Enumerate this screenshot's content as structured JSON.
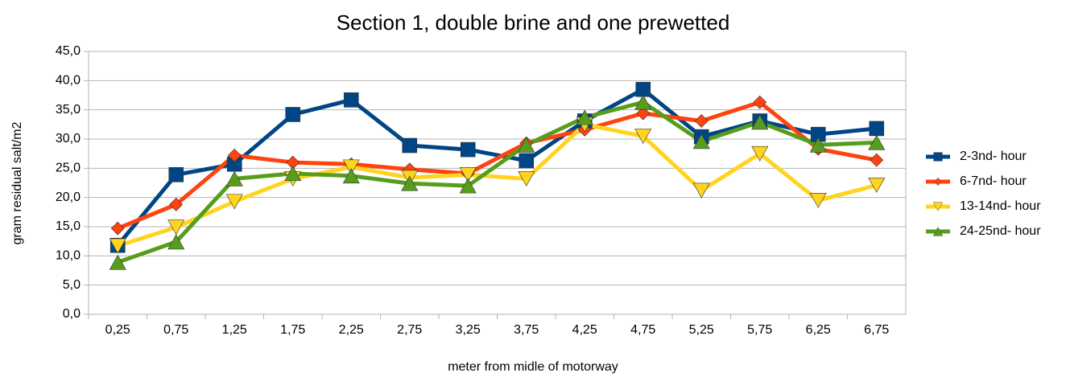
{
  "chart_data": {
    "type": "line",
    "title": "Section 1, double brine and one prewetted",
    "x_label": "meter from midle of motorway",
    "y_label": "gram residual salt/m2",
    "categories": [
      "0,25",
      "0,75",
      "1,25",
      "1,75",
      "2,25",
      "2,75",
      "3,25",
      "3,75",
      "4,25",
      "4,75",
      "5,25",
      "5,75",
      "6,25",
      "6,75"
    ],
    "series": [
      {
        "name": "2-3nd- hour",
        "color": "#004586",
        "marker": "square",
        "values": [
          11.8,
          23.9,
          25.7,
          34.2,
          36.7,
          28.9,
          28.2,
          26.3,
          33.1,
          38.5,
          30.4,
          33.1,
          30.8,
          31.8
        ]
      },
      {
        "name": "6-7nd- hour",
        "color": "#ff420e",
        "marker": "diamond",
        "values": [
          14.7,
          18.8,
          27.2,
          26.0,
          25.7,
          24.8,
          24.1,
          29.3,
          31.6,
          34.4,
          33.1,
          36.3,
          28.3,
          26.4
        ]
      },
      {
        "name": "13-14nd- hour",
        "color": "#ffd320",
        "marker": "triangle-down",
        "values": [
          11.7,
          14.9,
          19.3,
          23.2,
          25.2,
          23.4,
          23.9,
          23.2,
          32.5,
          30.5,
          21.2,
          27.5,
          19.5,
          22.1
        ]
      },
      {
        "name": "24-25nd- hour",
        "color": "#579d1c",
        "marker": "triangle-up",
        "values": [
          8.9,
          12.4,
          23.2,
          24.1,
          23.7,
          22.4,
          22.0,
          29.0,
          33.7,
          36.3,
          29.6,
          32.9,
          29.0,
          29.4
        ]
      }
    ],
    "ylim": [
      0,
      45
    ],
    "yticks": [
      {
        "value": 0,
        "label": "0,0"
      },
      {
        "value": 5,
        "label": "5,0"
      },
      {
        "value": 10,
        "label": "10,0"
      },
      {
        "value": 15,
        "label": "15,0"
      },
      {
        "value": 20,
        "label": "20,0"
      },
      {
        "value": 25,
        "label": "25,0"
      },
      {
        "value": 30,
        "label": "30,0"
      },
      {
        "value": 35,
        "label": "35,0"
      },
      {
        "value": 40,
        "label": "40,0"
      },
      {
        "value": 45,
        "label": "45,0"
      }
    ],
    "grid": true,
    "legend": "right"
  }
}
